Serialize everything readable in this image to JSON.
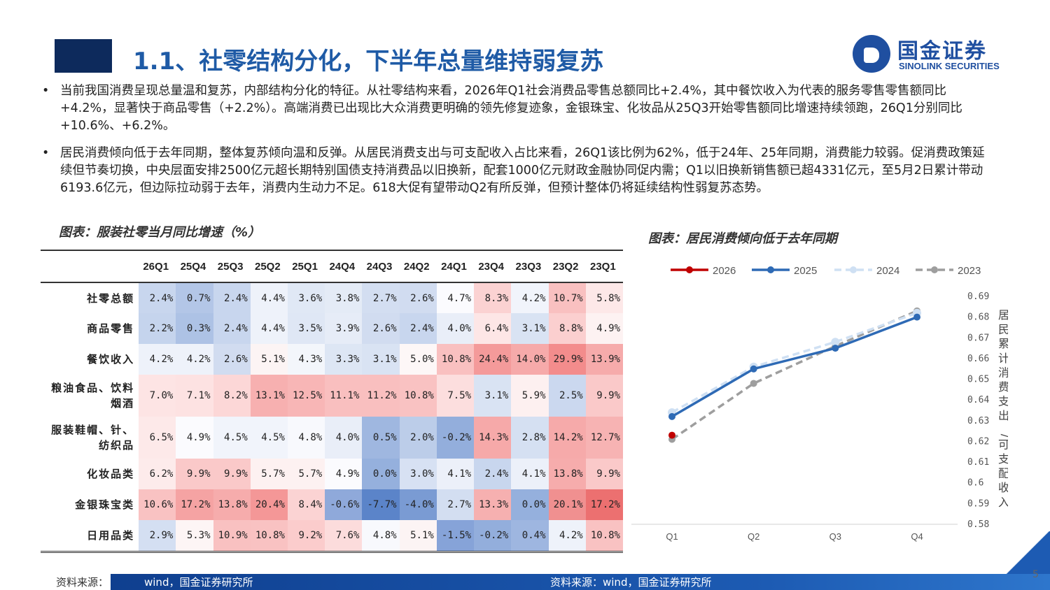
{
  "header": {
    "title": "1.1、社零结构分化，下半年总量维持弱复苏",
    "logo_cn": "国金证券",
    "logo_en": "SINOLINK SECURITIES"
  },
  "bullets": [
    {
      "marker": "•",
      "text": "当前我国消费呈现总量温和复苏，内部结构分化的特征。从社零结构来看，2026年Q1社会消费品零售总额同比+2.4%，其中餐饮收入为代表的服务零售零售额同比+4.2%，显著快于商品零售（+2.2%）。高端消费已出现比大众消费更明确的领先修复迹象，金银珠宝、化妆品从25Q3开始零售额同比增速持续领跑，26Q1分别同比+10.6%、+6.2%。"
    },
    {
      "marker": "•",
      "text": "居民消费倾向低于去年同期，整体复苏倾向温和反弹。从居民消费支出与可支配收入占比来看，26Q1该比例为62%，低于24年、25年同期，消费能力较弱。促消费政策延续但节奏切换，中央层面安排2500亿元超长期特别国债支持消费品以旧换新，配套1000亿元财政金融协同促内需；Q1以旧换新销售额已超4331亿元，至5月2日累计带动6193.6亿元，但边际拉动弱于去年，消费内生动力不足。618大促有望带动Q2有所反弹，但预计整体仍将延续结构性弱复苏态势。"
    }
  ],
  "table_caption": "图表：服装社零当月同比增速（%）",
  "chart_caption": "图表：居民消费倾向低于去年同期",
  "table": {
    "columns": [
      "26Q1",
      "25Q4",
      "25Q3",
      "25Q2",
      "25Q1",
      "24Q4",
      "24Q3",
      "24Q2",
      "24Q1",
      "23Q4",
      "23Q3",
      "23Q2",
      "23Q1"
    ],
    "rows": [
      {
        "label": [
          "社零总额"
        ],
        "cells": [
          "2.4%",
          "0.7%",
          "2.4%",
          "4.4%",
          "3.6%",
          "3.8%",
          "2.7%",
          "2.6%",
          "4.7%",
          "8.3%",
          "4.2%",
          "10.7%",
          "5.8%"
        ],
        "colors": [
          "#c8d6ee",
          "#b3c6e7",
          "#c8d6ee",
          "#eef2fa",
          "#e0e8f5",
          "#e4ebf6",
          "#d3def1",
          "#d1dcf0",
          "#fbfbfe",
          "#fbd2d2",
          "#f1f4fb",
          "#f9c0c0",
          "#fde8e8"
        ]
      },
      {
        "label": [
          "商品零售"
        ],
        "cells": [
          "2.2%",
          "0.3%",
          "2.4%",
          "4.4%",
          "3.5%",
          "3.9%",
          "2.6%",
          "2.4%",
          "4.0%",
          "6.4%",
          "3.1%",
          "8.8%",
          "4.9%"
        ],
        "colors": [
          "#c5d4ed",
          "#adc2e5",
          "#c8d6ee",
          "#eef2fa",
          "#dfe7f5",
          "#e6ecf7",
          "#d1dcf0",
          "#c8d6ee",
          "#e9eef8",
          "#fde6e6",
          "#d9e3f3",
          "#fbcfcf",
          "#fdf2f2"
        ]
      },
      {
        "label": [
          "餐饮收入"
        ],
        "cells": [
          "4.2%",
          "4.2%",
          "2.6%",
          "5.1%",
          "4.3%",
          "3.3%",
          "3.1%",
          "5.0%",
          "10.8%",
          "24.4%",
          "14.0%",
          "29.9%",
          "13.9%"
        ],
        "colors": [
          "#eef2fa",
          "#eef2fa",
          "#d1dcf0",
          "#fcf4f4",
          "#f3f6fb",
          "#dde6f4",
          "#d9e3f3",
          "#fdf7f7",
          "#f9c0c0",
          "#f49a9a",
          "#f6aaaa",
          "#f38c8c",
          "#f6abab"
        ]
      },
      {
        "label": [
          "粮油食品、饮料",
          "烟酒"
        ],
        "cells": [
          "7.0%",
          "7.1%",
          "8.2%",
          "13.1%",
          "12.5%",
          "11.1%",
          "11.2%",
          "10.8%",
          "7.5%",
          "3.1%",
          "5.9%",
          "2.5%",
          "9.9%"
        ],
        "colors": [
          "#fde4e4",
          "#fde2e2",
          "#fcd7d7",
          "#f7b0b0",
          "#f8b6b6",
          "#f9bfbf",
          "#f9bfbf",
          "#f9c2c2",
          "#fcdede",
          "#d9e3f3",
          "#fdf0f0",
          "#cbd8ef",
          "#fac9c9"
        ]
      },
      {
        "label": [
          "服装鞋帽、针、",
          "纺织品"
        ],
        "cells": [
          "6.5%",
          "4.9%",
          "4.5%",
          "4.5%",
          "4.8%",
          "4.0%",
          "0.5%",
          "2.0%",
          "-0.2%",
          "14.3%",
          "2.8%",
          "14.2%",
          "12.7%"
        ],
        "colors": [
          "#fde9e9",
          "#fbfbfe",
          "#f1f4fb",
          "#f1f4fb",
          "#f8f9fd",
          "#e9eef8",
          "#9fb7e0",
          "#bccde9",
          "#93aedc",
          "#f6a9a9",
          "#d5e0f2",
          "#f6aaaa",
          "#f7b3b3"
        ]
      },
      {
        "label": [
          "化妆品类"
        ],
        "cells": [
          "6.2%",
          "9.9%",
          "9.9%",
          "5.7%",
          "5.7%",
          "4.9%",
          "0.0%",
          "3.0%",
          "4.1%",
          "2.4%",
          "4.1%",
          "13.8%",
          "9.9%"
        ],
        "colors": [
          "#fdebeb",
          "#fac9c9",
          "#fac9c9",
          "#fdf1f1",
          "#fdf1f1",
          "#fbfbfe",
          "#95b0dd",
          "#d7e1f3",
          "#ecf0f9",
          "#c8d6ee",
          "#ecf0f9",
          "#f6acac",
          "#fac9c9"
        ]
      },
      {
        "label": [
          "金银珠宝类"
        ],
        "cells": [
          "10.6%",
          "17.2%",
          "13.8%",
          "20.4%",
          "8.4%",
          "-0.6%",
          "-7.7%",
          "-4.0%",
          "2.7%",
          "13.3%",
          "0.0%",
          "20.1%",
          "17.2%"
        ],
        "colors": [
          "#f9c2c2",
          "#f5a3a3",
          "#f6acac",
          "#f49797",
          "#fbd3d3",
          "#8fa9da",
          "#5b84c9",
          "#7a9bd3",
          "#d3def1",
          "#f6b0b0",
          "#95b0dd",
          "#f09090",
          "#ec7070"
        ]
      },
      {
        "label": [
          "日用品类"
        ],
        "cells": [
          "2.9%",
          "5.3%",
          "10.9%",
          "10.8%",
          "9.2%",
          "7.6%",
          "4.8%",
          "5.1%",
          "-1.5%",
          "-0.2%",
          "0.4%",
          "4.2%",
          "10.8%"
        ],
        "colors": [
          "#d4dff2",
          "#fdf5f5",
          "#f9c1c1",
          "#f9c2c2",
          "#fbcccc",
          "#fcdcdc",
          "#f8f9fd",
          "#fcf4f4",
          "#86a3d8",
          "#93aedc",
          "#9eb6e0",
          "#eef2fa",
          "#f9c2c2"
        ]
      }
    ]
  },
  "chart_data": {
    "type": "line",
    "title": "",
    "xlabel": "",
    "ylabel": "居民累计消费支出/可支配收入",
    "categories": [
      "Q1",
      "Q2",
      "Q3",
      "Q4"
    ],
    "ylim": [
      0.58,
      0.69
    ],
    "yticks": [
      "0.69",
      "0.68",
      "0.67",
      "0.66",
      "0.65",
      "0.64",
      "0.63",
      "0.62",
      "0.61",
      "0.6",
      "0.59",
      "0.58"
    ],
    "legend_position": "top",
    "series": [
      {
        "name": "2026",
        "values": [
          0.623,
          null,
          null,
          null
        ],
        "color": "#c00000",
        "dash": "solid"
      },
      {
        "name": "2025",
        "values": [
          0.632,
          0.655,
          0.665,
          0.68
        ],
        "color": "#2e6ab5",
        "dash": "solid"
      },
      {
        "name": "2024",
        "values": [
          0.634,
          0.656,
          0.668,
          0.682
        ],
        "color": "#cfe0f3",
        "dash": "dashed"
      },
      {
        "name": "2023",
        "values": [
          0.621,
          0.648,
          0.666,
          0.683
        ],
        "color": "#9e9e9e",
        "dash": "dashed"
      }
    ]
  },
  "sources": {
    "left": "资料来源：",
    "left_rest": "wind，国金证券研究所",
    "right": "资料来源：wind，国金证券研究所"
  },
  "page_number": "5"
}
